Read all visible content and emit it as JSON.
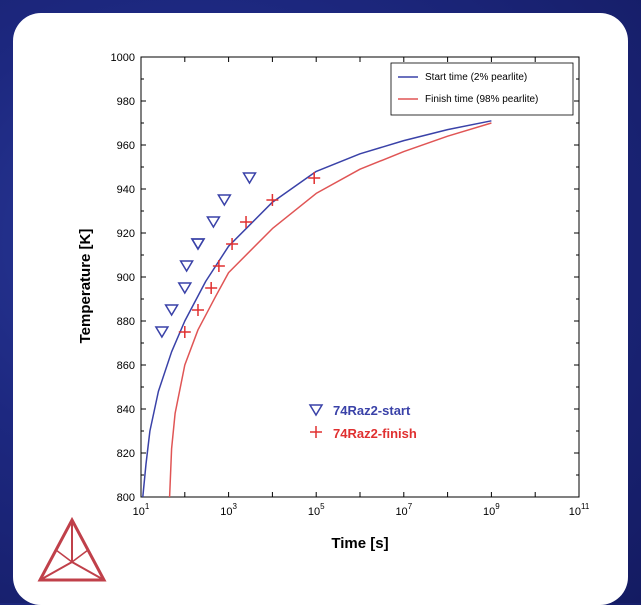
{
  "chart_data": {
    "type": "line",
    "xlabel": "Time [s]",
    "ylabel": "Temperature [K]",
    "xscale": "log",
    "xlim_exp": [
      1,
      11
    ],
    "ylim": [
      800,
      1000
    ],
    "x_ticks": [
      {
        "base": "10",
        "exp": "1"
      },
      {
        "base": "10",
        "exp": "3"
      },
      {
        "base": "10",
        "exp": "5"
      },
      {
        "base": "10",
        "exp": "7"
      },
      {
        "base": "10",
        "exp": "9"
      },
      {
        "base": "10",
        "exp": "11"
      }
    ],
    "y_ticks": [
      "800",
      "820",
      "840",
      "860",
      "880",
      "900",
      "920",
      "940",
      "960",
      "980",
      "1000"
    ],
    "legend_position": "top-right",
    "series": [
      {
        "name": "Start time (2% pearlite)",
        "color": "#3a42a8",
        "x": [
          11,
          13,
          16,
          25,
          50,
          100,
          300,
          1000,
          10000,
          100000,
          1000000,
          10000000,
          100000000,
          1000000000
        ],
        "y": [
          800,
          815,
          830,
          848,
          866,
          880,
          898,
          914,
          934,
          948,
          956,
          962,
          967,
          971
        ]
      },
      {
        "name": "Finish time (98% pearlite)",
        "color": "#e05555",
        "x": [
          45,
          50,
          60,
          100,
          200,
          500,
          1000,
          10000,
          100000,
          1000000,
          10000000,
          100000000,
          1000000000
        ],
        "y": [
          800,
          822,
          838,
          860,
          876,
          891,
          902,
          922,
          938,
          949,
          957,
          964,
          970
        ]
      }
    ],
    "markers": [
      {
        "name": "74Raz2-start",
        "symbol": "triangle-down",
        "color": "#3a42a8",
        "x": [
          30,
          50,
          100,
          110,
          200,
          200,
          450,
          800,
          3000
        ],
        "y": [
          875,
          885,
          895,
          905,
          915,
          915,
          925,
          935,
          945
        ]
      },
      {
        "name": "74Raz2-finish",
        "symbol": "plus",
        "color": "#e03030",
        "x": [
          100,
          200,
          400,
          600,
          1200,
          2500,
          10000,
          90000
        ],
        "y": [
          875,
          885,
          895,
          905,
          915,
          925,
          935,
          945
        ]
      }
    ]
  }
}
